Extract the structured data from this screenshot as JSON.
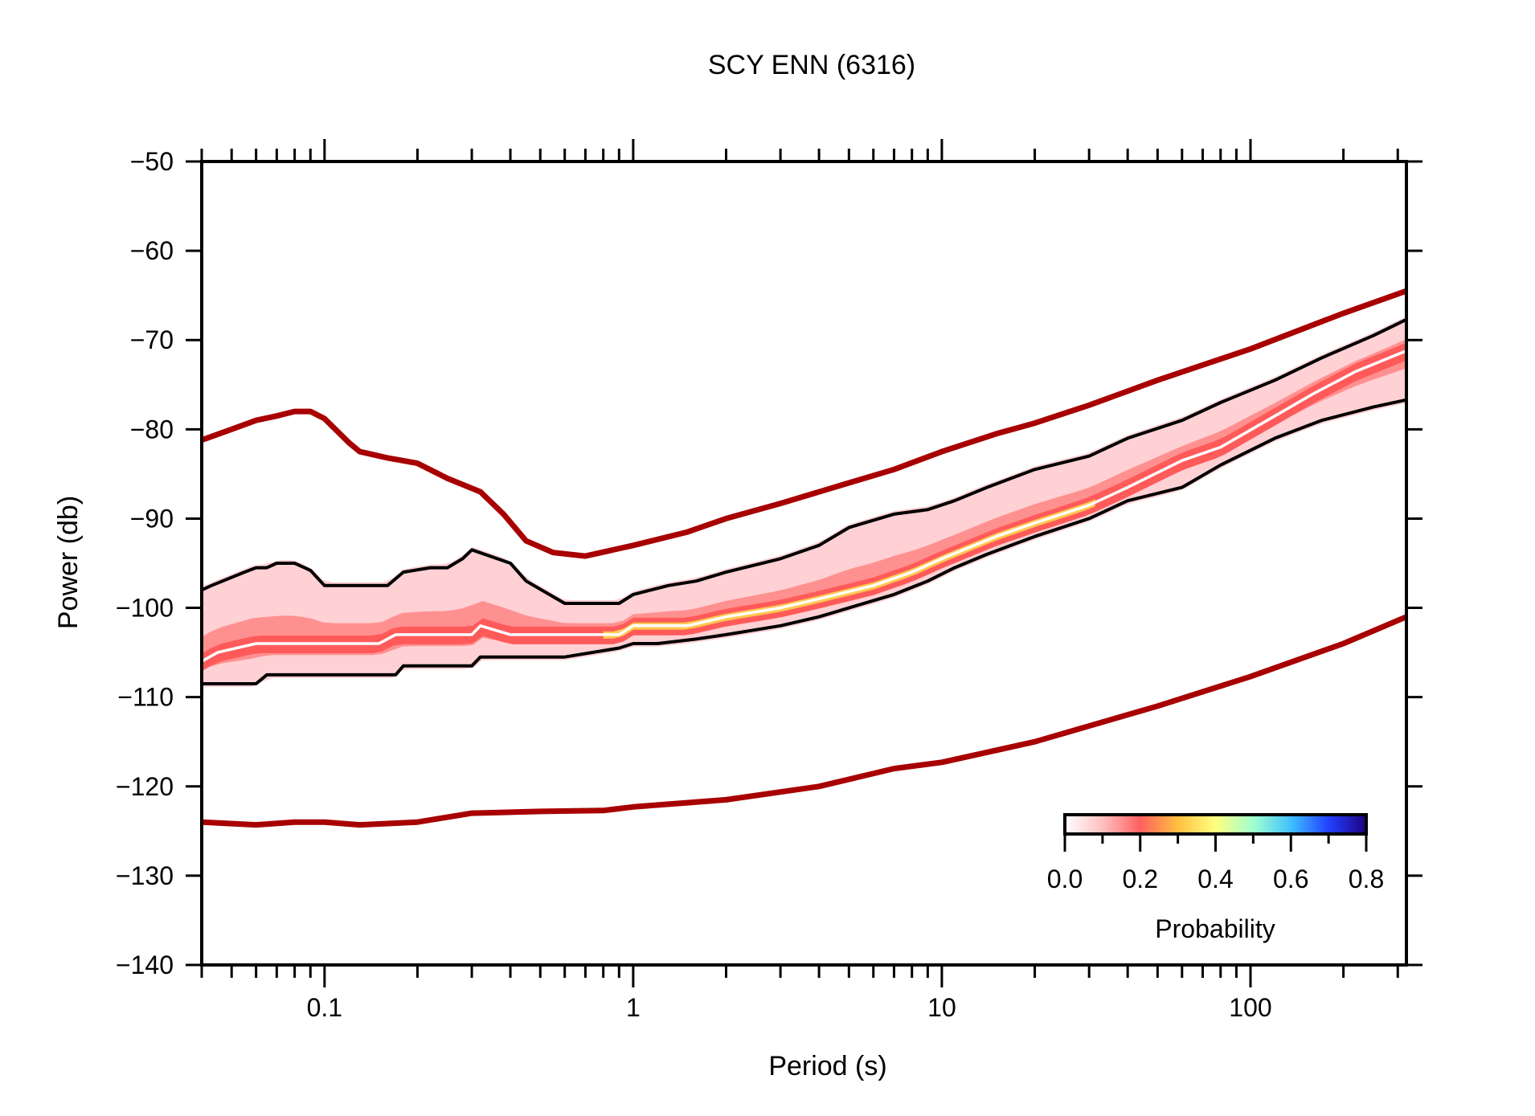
{
  "chart_data": {
    "type": "line",
    "title": "SCY ENN (6316)",
    "xlabel": "Period (s)",
    "ylabel": "Power (db)",
    "xscale": "log",
    "xlim": [
      0.04,
      320
    ],
    "ylim": [
      -140,
      -50
    ],
    "xticks": [
      {
        "v": 0.1,
        "label": "0.1"
      },
      {
        "v": 1,
        "label": "1"
      },
      {
        "v": 10,
        "label": "10"
      },
      {
        "v": 100,
        "label": "100"
      }
    ],
    "yticks": [
      {
        "v": -50,
        "label": "−50"
      },
      {
        "v": -60,
        "label": "−60"
      },
      {
        "v": -70,
        "label": "−70"
      },
      {
        "v": -80,
        "label": "−80"
      },
      {
        "v": -90,
        "label": "−90"
      },
      {
        "v": -100,
        "label": "−100"
      },
      {
        "v": -110,
        "label": "−110"
      },
      {
        "v": -120,
        "label": "−120"
      },
      {
        "v": -130,
        "label": "−130"
      },
      {
        "v": -140,
        "label": "−140"
      }
    ],
    "grid": false,
    "series": [
      {
        "name": "high-noise-model",
        "color": "#a80000",
        "x": [
          0.04,
          0.05,
          0.06,
          0.07,
          0.08,
          0.09,
          0.1,
          0.12,
          0.13,
          0.16,
          0.2,
          0.25,
          0.32,
          0.38,
          0.45,
          0.55,
          0.7,
          1,
          1.5,
          2,
          3,
          5,
          7,
          10,
          15,
          20,
          30,
          50,
          100,
          200,
          320
        ],
        "y": [
          -81.2,
          -80,
          -79,
          -78.5,
          -78,
          -78,
          -78.8,
          -81.5,
          -82.5,
          -83.2,
          -83.8,
          -85.5,
          -87,
          -89.5,
          -92.5,
          -93.8,
          -94.2,
          -93,
          -91.5,
          -90,
          -88.3,
          -86,
          -84.5,
          -82.5,
          -80.5,
          -79.3,
          -77.3,
          -74.5,
          -71,
          -67,
          -64.5
        ]
      },
      {
        "name": "low-noise-model",
        "color": "#a80000",
        "x": [
          0.04,
          0.06,
          0.08,
          0.1,
          0.13,
          0.2,
          0.3,
          0.5,
          0.8,
          1,
          2,
          4,
          7,
          10,
          20,
          50,
          100,
          200,
          320
        ],
        "y": [
          -124,
          -124.3,
          -124,
          -124,
          -124.3,
          -124,
          -123,
          -122.8,
          -122.7,
          -122.3,
          -121.5,
          -120,
          -118,
          -117.3,
          -115,
          -111,
          -107.7,
          -104,
          -101
        ]
      },
      {
        "name": "upper-percentile",
        "color": "#000000",
        "x": [
          0.04,
          0.043,
          0.055,
          0.06,
          0.065,
          0.07,
          0.08,
          0.09,
          0.1,
          0.16,
          0.18,
          0.22,
          0.25,
          0.28,
          0.3,
          0.4,
          0.45,
          0.6,
          0.7,
          0.9,
          1,
          1.3,
          1.6,
          2,
          3,
          4,
          5,
          7,
          9,
          11,
          14,
          20,
          30,
          40,
          60,
          80,
          120,
          170,
          250,
          320
        ],
        "y": [
          -98,
          -97.5,
          -96,
          -95.5,
          -95.5,
          -95,
          -95,
          -95.8,
          -97.5,
          -97.5,
          -96,
          -95.5,
          -95.5,
          -94.5,
          -93.5,
          -95,
          -97,
          -99.5,
          -99.5,
          -99.5,
          -98.5,
          -97.5,
          -97,
          -96,
          -94.5,
          -93,
          -91,
          -89.5,
          -89,
          -88,
          -86.5,
          -84.5,
          -83,
          -81,
          -79,
          -77,
          -74.5,
          -72,
          -69.5,
          -67.7
        ]
      },
      {
        "name": "mode",
        "color": "#ffffff",
        "x": [
          0.04,
          0.045,
          0.06,
          0.1,
          0.15,
          0.17,
          0.3,
          0.32,
          0.4,
          0.6,
          0.9,
          1,
          1.5,
          2,
          3,
          4,
          6,
          8,
          10,
          15,
          20,
          30,
          40,
          60,
          80,
          120,
          160,
          220,
          320
        ],
        "y": [
          -106,
          -105,
          -104,
          -104,
          -104,
          -103,
          -103,
          -102,
          -103,
          -103,
          -103,
          -102,
          -102,
          -101,
          -100,
          -99,
          -97.5,
          -96,
          -94.5,
          -92,
          -90.5,
          -88.5,
          -86.5,
          -83.5,
          -82,
          -78.5,
          -76,
          -73.5,
          -71.2
        ]
      },
      {
        "name": "lower-percentile",
        "color": "#000000",
        "x": [
          0.04,
          0.06,
          0.065,
          0.17,
          0.18,
          0.3,
          0.32,
          0.6,
          0.9,
          1,
          1.2,
          1.6,
          2,
          3,
          4,
          5,
          7,
          9,
          11,
          14,
          20,
          30,
          40,
          60,
          80,
          120,
          170,
          250,
          320
        ],
        "y": [
          -108.5,
          -108.5,
          -107.5,
          -107.5,
          -106.5,
          -106.5,
          -105.5,
          -105.5,
          -104.5,
          -104,
          -104,
          -103.5,
          -103,
          -102,
          -101,
          -100,
          -98.5,
          -97,
          -95.5,
          -94,
          -92,
          -90,
          -88,
          -86.5,
          -84,
          -81,
          -79,
          -77.5,
          -76.7
        ]
      }
    ],
    "colorbar": {
      "label": "Probability",
      "range": [
        0.0,
        0.8
      ],
      "ticks": [
        "0.0",
        "0.2",
        "0.4",
        "0.6",
        "0.8"
      ],
      "colors": [
        "#ffffff",
        "#ffc0c0",
        "#ff6060",
        "#ffc040",
        "#ffff80",
        "#a0ffd0",
        "#40c0ff",
        "#2040ff",
        "#200080"
      ]
    }
  }
}
